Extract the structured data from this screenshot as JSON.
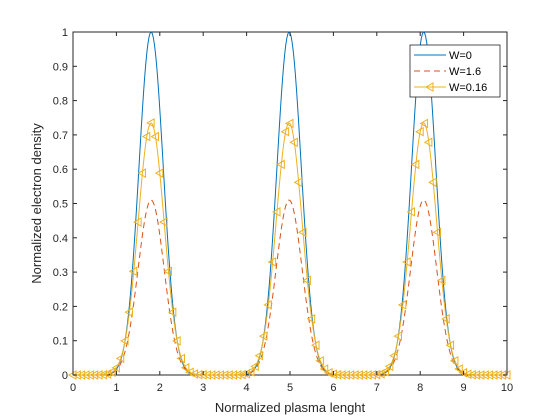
{
  "chart_data": {
    "type": "line",
    "xlabel": "Normalized plasma lenght",
    "ylabel": "Normalized electron density",
    "xlim": [
      0,
      10
    ],
    "ylim": [
      0,
      1
    ],
    "x_ticks": [
      "0",
      "1",
      "2",
      "3",
      "4",
      "5",
      "6",
      "7",
      "8",
      "9",
      "10"
    ],
    "y_ticks": [
      "0",
      "0.1",
      "0.2",
      "0.3",
      "0.4",
      "0.5",
      "0.6",
      "0.7",
      "0.8",
      "0.9",
      "1"
    ],
    "grid": false,
    "legend_position": "top-right",
    "series": [
      {
        "name": "W=0",
        "color": "#0072BD",
        "style": "solid",
        "marker": "none",
        "peak_centers": [
          1.8,
          4.98,
          8.08
        ],
        "peak_value": 1.0,
        "peak_width": 0.28
      },
      {
        "name": "W=1.6",
        "color": "#D95319",
        "style": "dashed",
        "marker": "none",
        "peak_centers": [
          1.8,
          4.98,
          8.08
        ],
        "peak_value": 0.51,
        "peak_width": 0.3
      },
      {
        "name": "W=0.16",
        "color": "#EDB120",
        "style": "solid",
        "marker": "left-triangle",
        "peak_centers": [
          1.8,
          4.98,
          8.08
        ],
        "peak_value": 0.735,
        "peak_width": 0.3
      }
    ]
  }
}
